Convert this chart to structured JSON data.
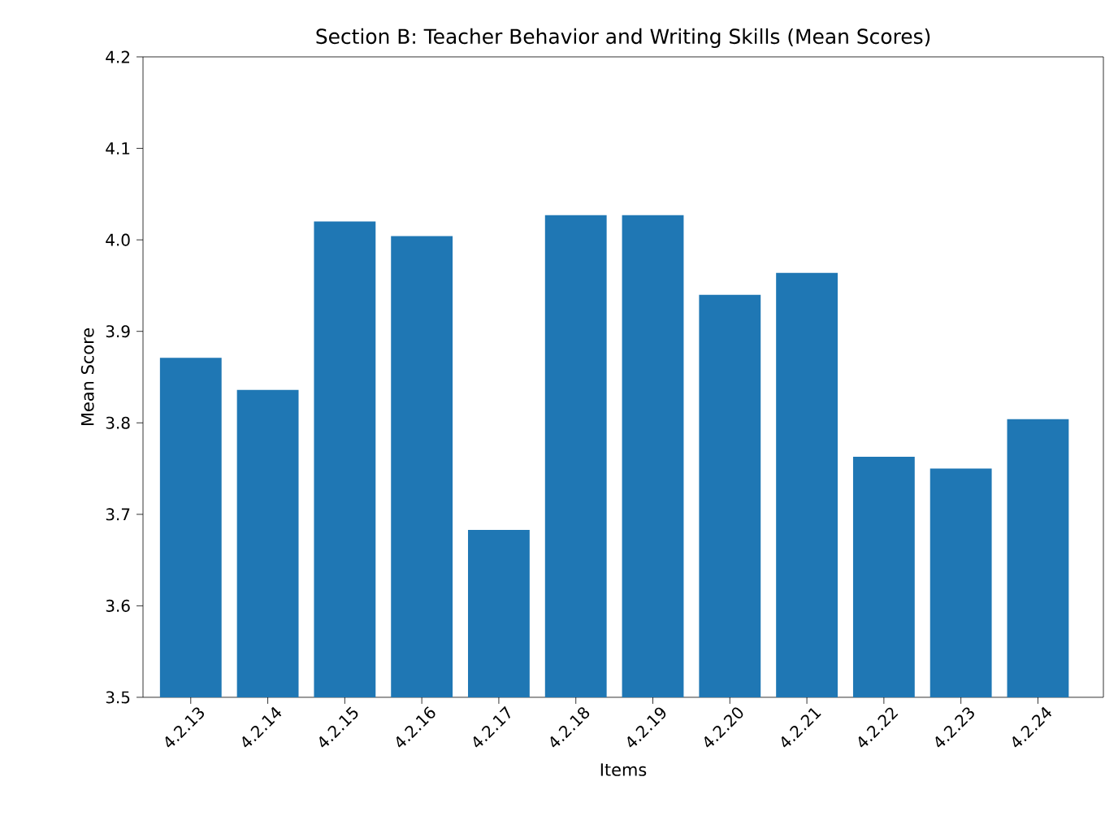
{
  "chart_data": {
    "type": "bar",
    "title": "Section B: Teacher Behavior and Writing Skills (Mean Scores)",
    "xlabel": "Items",
    "ylabel": "Mean Score",
    "categories": [
      "4.2.13",
      "4.2.14",
      "4.2.15",
      "4.2.16",
      "4.2.17",
      "4.2.18",
      "4.2.19",
      "4.2.20",
      "4.2.21",
      "4.2.22",
      "4.2.23",
      "4.2.24"
    ],
    "values": [
      3.871,
      3.836,
      4.02,
      4.004,
      3.683,
      4.027,
      4.027,
      3.94,
      3.964,
      3.763,
      3.75,
      3.804
    ],
    "color": "#1f77b4",
    "ylim": [
      3.5,
      4.2
    ],
    "yticks": [
      3.5,
      3.6,
      3.7,
      3.8,
      3.9,
      {
        "value": 4.0,
        "label": "4.0"
      },
      4.1,
      4.2
    ],
    "grid": false
  }
}
